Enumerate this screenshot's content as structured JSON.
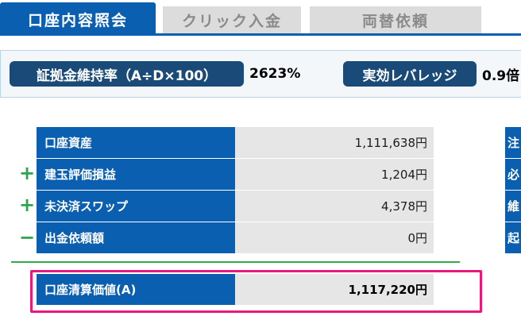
{
  "tabs": [
    {
      "label": "口座内容照会",
      "active": true
    },
    {
      "label": "クリック入金",
      "active": false
    },
    {
      "label": "両替依頼",
      "active": false
    }
  ],
  "ratio_bar": {
    "margin_ratio_label": "証拠金維持率（A÷D×100）",
    "margin_ratio_value": "2623%",
    "leverage_label": "実効レバレッジ",
    "leverage_value": "0.9倍"
  },
  "balance": {
    "rows": [
      {
        "sign": "",
        "label": "口座資産",
        "value": "1,111,638円"
      },
      {
        "sign": "+",
        "label": "建玉評価損益",
        "value": "1,204円"
      },
      {
        "sign": "+",
        "label": "未決済スワップ",
        "value": "4,378円"
      },
      {
        "sign": "−",
        "label": "出金依頼額",
        "value": "0円"
      }
    ],
    "total": {
      "label": "口座清算価値(A)",
      "value": "1,117,220円"
    }
  },
  "right_column": {
    "items": [
      "注",
      "必",
      "維",
      "起"
    ]
  },
  "colors": {
    "primary_blue": "#0b5fb0",
    "pill_navy": "#1a4a77",
    "value_gray": "#e6e6e6",
    "plus_green": "#2ea44f",
    "highlight_pink": "#e8197b"
  }
}
